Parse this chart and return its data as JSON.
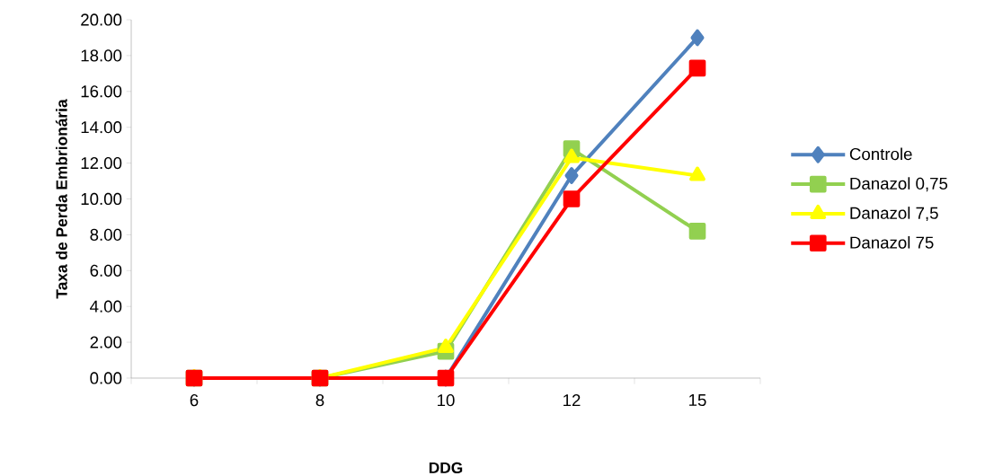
{
  "chart_data": {
    "type": "line",
    "xlabel": "DDG",
    "ylabel": "Taxa de Perda Embrionária",
    "categories": [
      "6",
      "8",
      "10",
      "12",
      "15"
    ],
    "series": [
      {
        "name": "Controle",
        "color": "#4f81bd",
        "marker": "diamond",
        "values": [
          0,
          0,
          0,
          11.3,
          19.0
        ]
      },
      {
        "name": "Danazol 0,75",
        "color": "#92d050",
        "marker": "square",
        "values": [
          0,
          0,
          1.5,
          12.8,
          8.2
        ]
      },
      {
        "name": "Danazol 7,5",
        "color": "#ffff00",
        "marker": "triangle",
        "values": [
          0,
          0,
          1.7,
          12.3,
          11.3
        ]
      },
      {
        "name": "Danazol 75",
        "color": "#ff0000",
        "marker": "square",
        "values": [
          0,
          0,
          0,
          10.0,
          17.3
        ]
      }
    ],
    "ylim": [
      0,
      20
    ],
    "yticks": [
      {
        "value": 0,
        "label": "0.00"
      },
      {
        "value": 2,
        "label": "2.00"
      },
      {
        "value": 4,
        "label": "4.00"
      },
      {
        "value": 6,
        "label": "6.00"
      },
      {
        "value": 8,
        "label": "8.00"
      },
      {
        "value": 10,
        "label": "10.00"
      },
      {
        "value": 12,
        "label": "12.00"
      },
      {
        "value": 14,
        "label": "14.00"
      },
      {
        "value": 16,
        "label": "16.00"
      },
      {
        "value": 18,
        "label": "18.00"
      },
      {
        "value": 20,
        "label": "20.00"
      }
    ],
    "grid": false,
    "legend": "right",
    "line_style": "solid"
  }
}
